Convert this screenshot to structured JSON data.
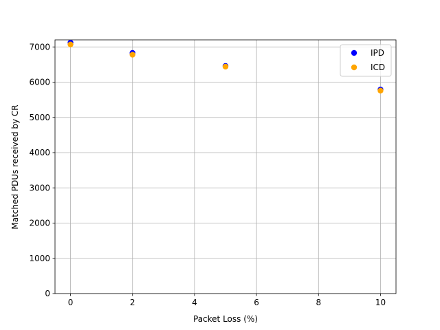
{
  "chart_data": {
    "type": "scatter",
    "title": "",
    "xlabel": "Packet Loss (%)",
    "ylabel": "Matched PDUs received by CR",
    "xlim": [
      -0.5,
      10.5
    ],
    "ylim": [
      0,
      7200
    ],
    "xticks": [
      0,
      2,
      4,
      6,
      8,
      10
    ],
    "yticks": [
      0,
      1000,
      2000,
      3000,
      4000,
      5000,
      6000,
      7000
    ],
    "grid": true,
    "legend_position": "top-right",
    "series": [
      {
        "name": "IPD",
        "color": "#0000ff",
        "x": [
          0,
          2,
          5,
          10
        ],
        "y": [
          7120,
          6830,
          6460,
          5790
        ]
      },
      {
        "name": "ICD",
        "color": "#ffa500",
        "x": [
          0,
          2,
          5,
          10
        ],
        "y": [
          7070,
          6780,
          6440,
          5760
        ]
      }
    ]
  }
}
